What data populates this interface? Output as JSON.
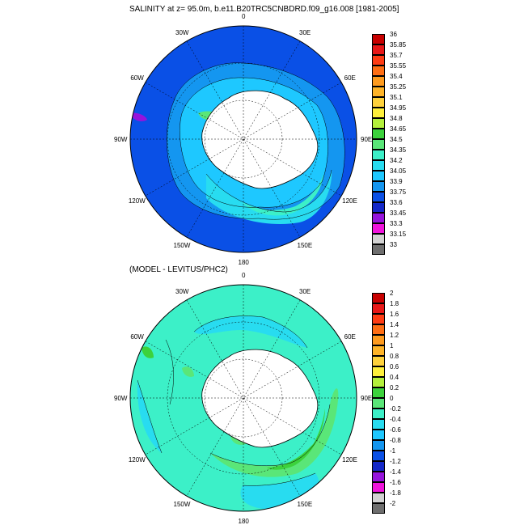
{
  "panels": [
    {
      "title": "SALINITY at z=  95.0m, b.e11.B20TRC5CNBDRD.f09_g16.008 [1981-2005]",
      "lon_labels": [
        "0",
        "30E",
        "60E",
        "90E",
        "120E",
        "150E",
        "180",
        "150W",
        "120W",
        "90W",
        "60W",
        "30W"
      ],
      "colorbar": {
        "levels": [
          "36",
          "35.85",
          "35.7",
          "35.55",
          "35.4",
          "35.25",
          "35.1",
          "34.95",
          "34.8",
          "34.65",
          "34.5",
          "34.35",
          "34.2",
          "34.05",
          "33.9",
          "33.75",
          "33.6",
          "33.45",
          "33.3",
          "33.15",
          "33"
        ],
        "colors": [
          "#c80000",
          "#e81818",
          "#ff3c14",
          "#ff6e14",
          "#ff9b1e",
          "#ffb428",
          "#ffd23c",
          "#fff03c",
          "#b4f03c",
          "#3cd23c",
          "#5ae678",
          "#3cf0c8",
          "#28dcf0",
          "#1ec8ff",
          "#1496f0",
          "#0a50e6",
          "#1428c8",
          "#9614dc",
          "#f014dc",
          "#d2d2d2",
          "#6e6e6e"
        ]
      }
    },
    {
      "title": "(MODEL - LEVITUS/PHC2)",
      "lon_labels": [
        "0",
        "30E",
        "60E",
        "90E",
        "120E",
        "150E",
        "180",
        "150W",
        "120W",
        "90W",
        "60W",
        "30W"
      ],
      "colorbar": {
        "levels": [
          "2",
          "1.8",
          "1.6",
          "1.4",
          "1.2",
          "1",
          "0.8",
          "0.6",
          "0.4",
          "0.2",
          "0",
          "-0.2",
          "-0.4",
          "-0.6",
          "-0.8",
          "-1",
          "-1.2",
          "-1.4",
          "-1.6",
          "-1.8",
          "-2"
        ],
        "colors": [
          "#c80000",
          "#e81818",
          "#ff3c14",
          "#ff6e14",
          "#ff9b1e",
          "#ffb428",
          "#ffd23c",
          "#fff03c",
          "#b4f03c",
          "#3cd23c",
          "#5ae678",
          "#3cf0c8",
          "#28dcf0",
          "#1ec8ff",
          "#1496f0",
          "#0a50e6",
          "#1428c8",
          "#9614dc",
          "#f014dc",
          "#d2d2d2",
          "#6e6e6e"
        ]
      }
    }
  ]
}
